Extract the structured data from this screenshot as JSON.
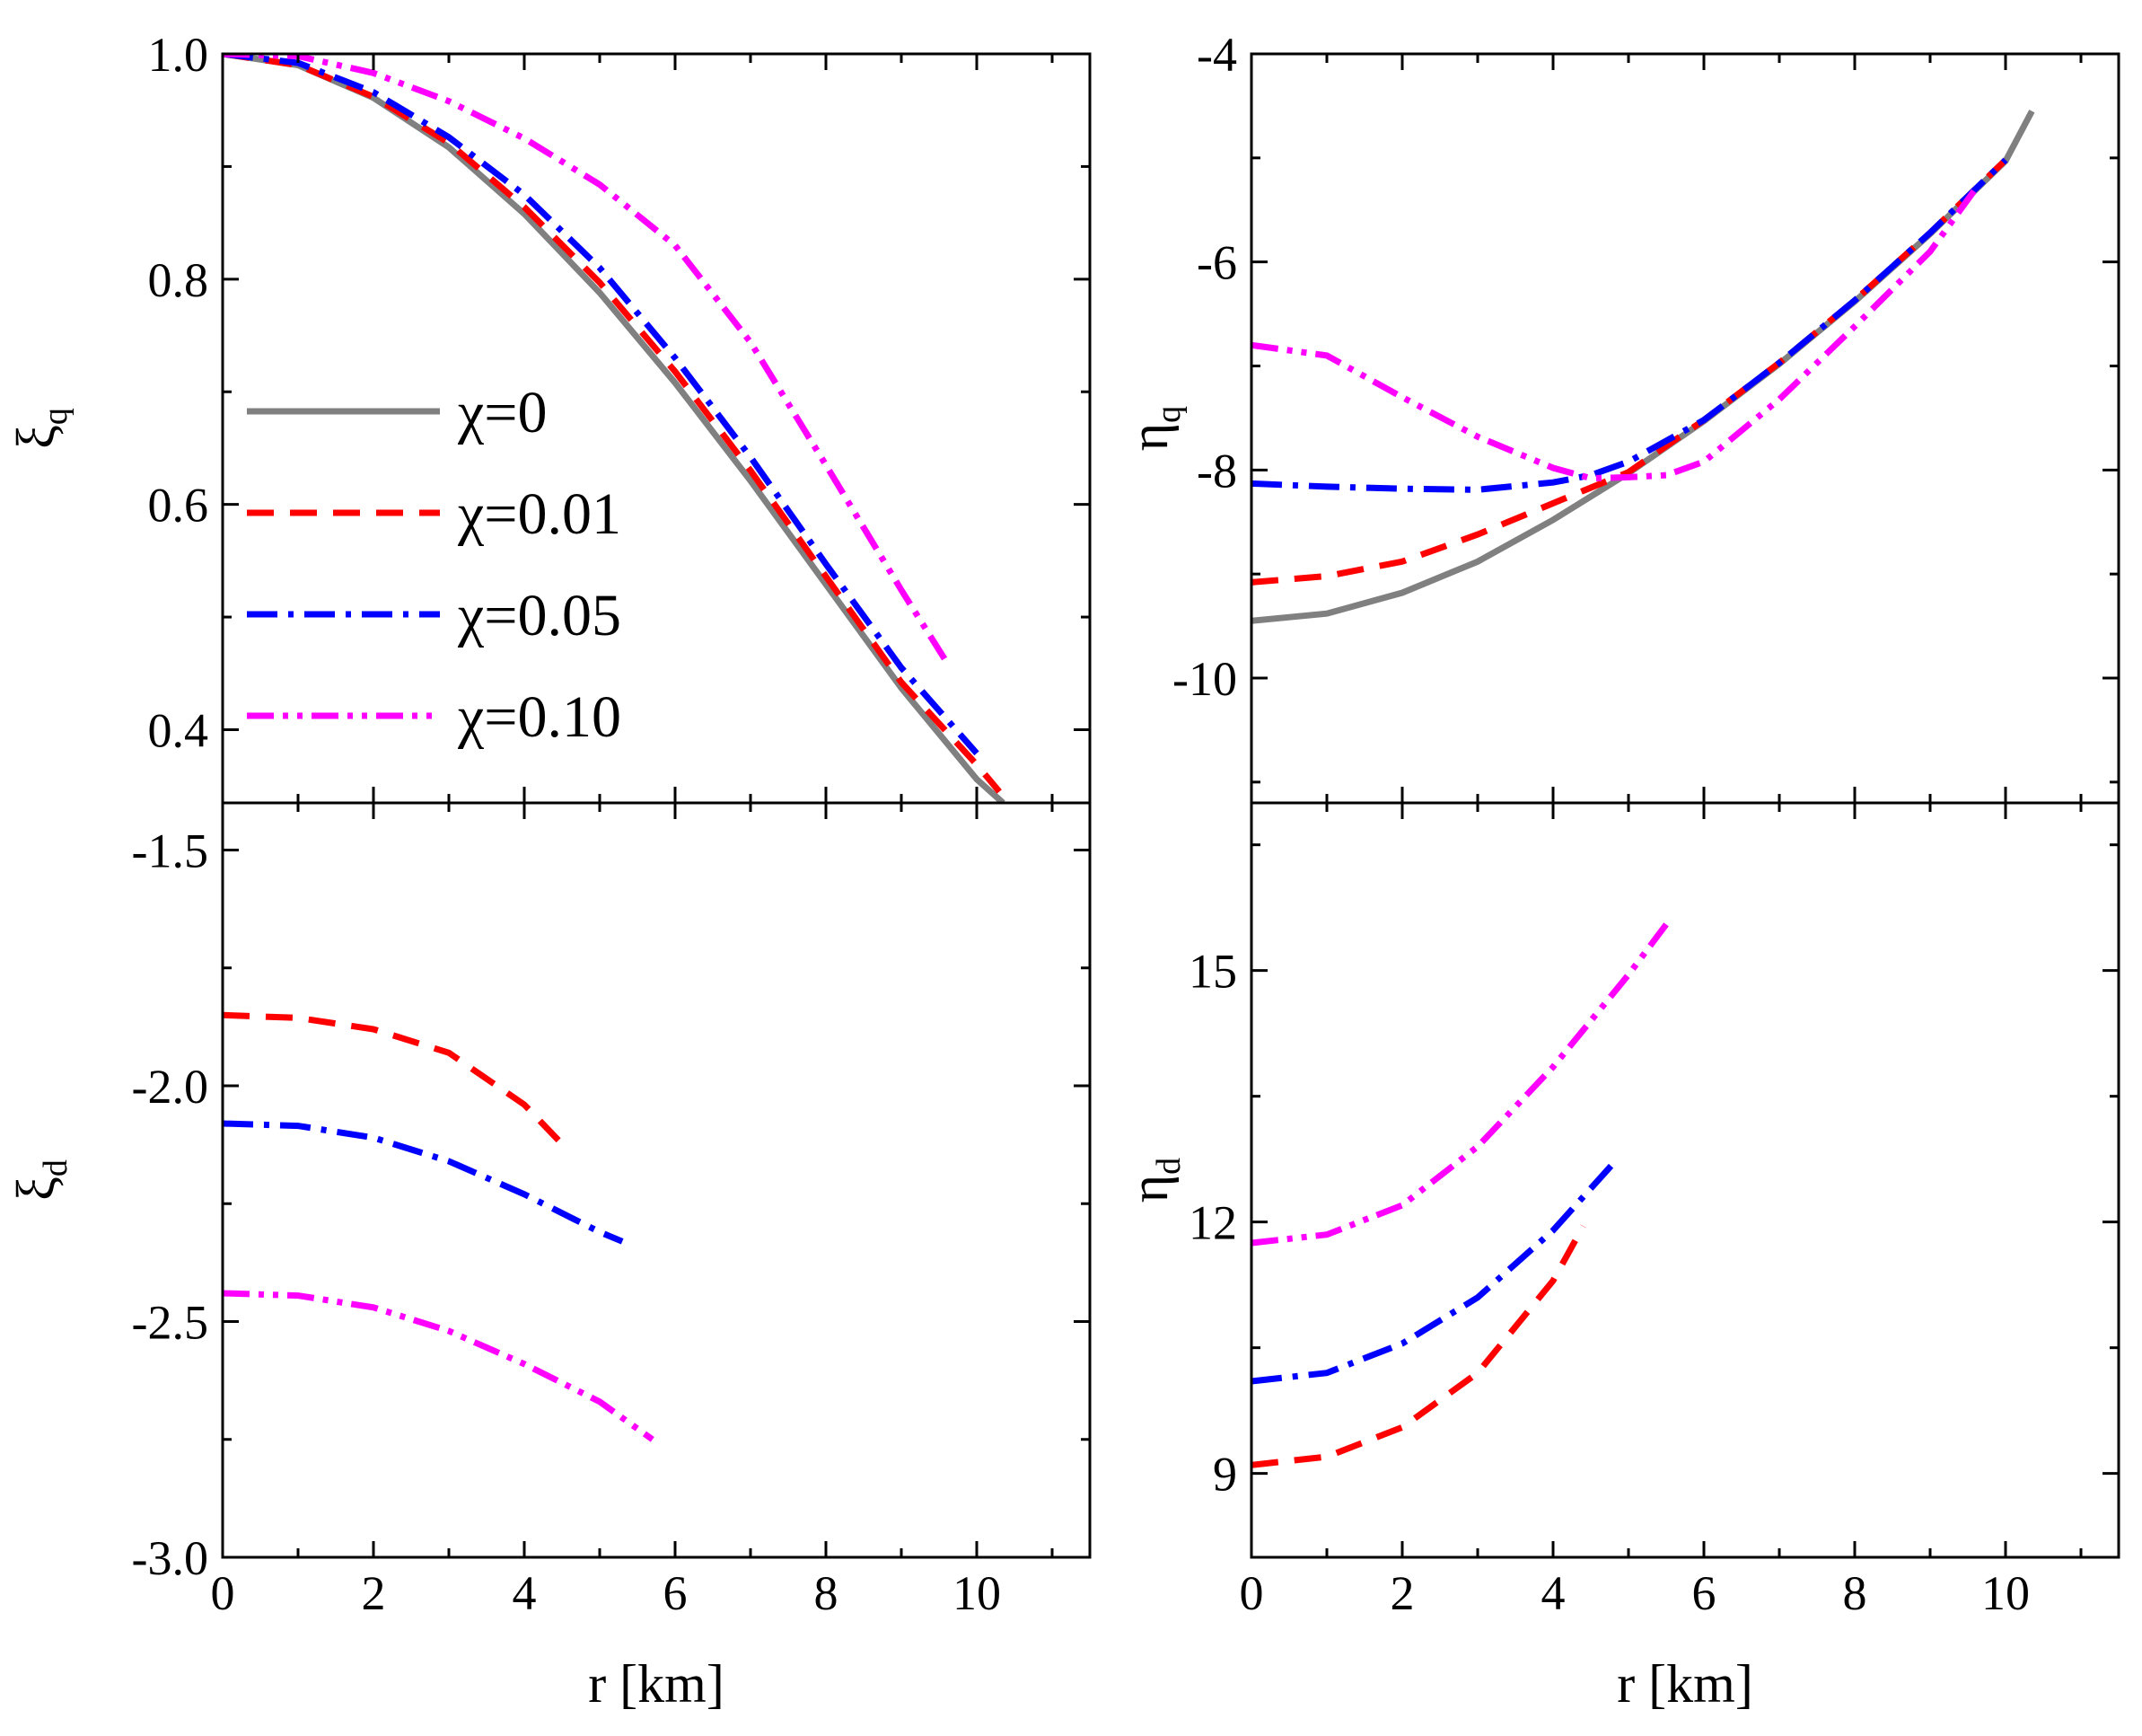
{
  "figure_title": "",
  "legend": [
    {
      "series": "chi0",
      "label": "χ=0"
    },
    {
      "series": "chi001",
      "label": "χ=0.01"
    },
    {
      "series": "chi005",
      "label": "χ=0.05"
    },
    {
      "series": "chi010",
      "label": "χ=0.10"
    }
  ],
  "styles": {
    "chi0": {
      "color": "#808080",
      "dash": ""
    },
    "chi001": {
      "color": "#ff0000",
      "dash": "30,18"
    },
    "chi005": {
      "color": "#0000ff",
      "dash": "34,12,6,12"
    },
    "chi010": {
      "color": "#ff00ff",
      "dash": "30,10,6,10,6,10"
    }
  },
  "chart_data": [
    {
      "id": "xi_q",
      "type": "line",
      "title": "",
      "xlabel": "",
      "ylabel_main": "ξ",
      "ylabel_sub": "q",
      "xlim": [
        0,
        11.5
      ],
      "ylim": [
        0.335,
        1.0
      ],
      "xticks": [
        0,
        2,
        4,
        6,
        8,
        10
      ],
      "xtick_labels": [
        "",
        "",
        "",
        "",
        "",
        ""
      ],
      "yticks": [
        0.4,
        0.6,
        0.8,
        1.0
      ],
      "ytick_labels": [
        "0.4",
        "0.6",
        "0.8",
        "1.0"
      ],
      "legend_position": "center-left",
      "series": [
        {
          "name": "chi0",
          "x": [
            0,
            1,
            2,
            3,
            4,
            5,
            6,
            7,
            8,
            9,
            10,
            10.35
          ],
          "y": [
            1.0,
            0.99,
            0.961,
            0.917,
            0.858,
            0.788,
            0.708,
            0.621,
            0.529,
            0.437,
            0.356,
            0.335
          ]
        },
        {
          "name": "chi001",
          "x": [
            0,
            1,
            2,
            3,
            4,
            5,
            6,
            7,
            8,
            9,
            10,
            10.3
          ],
          "y": [
            1.0,
            0.99,
            0.962,
            0.921,
            0.864,
            0.797,
            0.718,
            0.63,
            0.536,
            0.442,
            0.369,
            0.345
          ]
        },
        {
          "name": "chi005",
          "x": [
            0,
            1,
            2,
            3,
            4,
            5,
            6,
            7,
            8,
            9,
            10
          ],
          "y": [
            1.0,
            0.992,
            0.966,
            0.926,
            0.875,
            0.81,
            0.73,
            0.642,
            0.547,
            0.455,
            0.379
          ]
        },
        {
          "name": "chi010",
          "x": [
            0,
            1,
            2,
            3,
            4,
            5,
            6,
            7,
            8,
            9,
            9.6
          ],
          "y": [
            1.0,
            0.998,
            0.983,
            0.958,
            0.925,
            0.884,
            0.83,
            0.744,
            0.635,
            0.524,
            0.46
          ]
        }
      ]
    },
    {
      "id": "eta_q",
      "type": "line",
      "title": "",
      "xlabel": "",
      "ylabel_main": "η",
      "ylabel_sub": "q",
      "xlim": [
        0,
        11.5
      ],
      "ylim": [
        -11.2,
        -4.0
      ],
      "xticks": [
        0,
        2,
        4,
        6,
        8,
        10
      ],
      "xtick_labels": [
        "",
        "",
        "",
        "",
        "",
        ""
      ],
      "yticks": [
        -10,
        -8,
        -6,
        -4
      ],
      "ytick_labels": [
        "-10",
        "-8",
        "-6",
        "-4"
      ],
      "series": [
        {
          "name": "chi0",
          "x": [
            0,
            1,
            2,
            3,
            4,
            5,
            6,
            7,
            8,
            9,
            10,
            10.35
          ],
          "y": [
            -9.45,
            -9.38,
            -9.18,
            -8.88,
            -8.48,
            -8.03,
            -7.53,
            -6.98,
            -6.38,
            -5.73,
            -5.03,
            -4.55
          ]
        },
        {
          "name": "chi001",
          "x": [
            0,
            1,
            2,
            3,
            4,
            5,
            6,
            7,
            8,
            9,
            10
          ],
          "y": [
            -9.08,
            -9.02,
            -8.88,
            -8.62,
            -8.32,
            -8.02,
            -7.52,
            -6.97,
            -6.37,
            -5.72,
            -5.02
          ]
        },
        {
          "name": "chi005",
          "x": [
            0,
            1,
            2,
            3,
            4,
            4.5,
            5,
            6,
            7,
            8,
            9,
            10
          ],
          "y": [
            -8.13,
            -8.16,
            -8.18,
            -8.19,
            -8.12,
            -8.05,
            -7.92,
            -7.52,
            -6.97,
            -6.37,
            -5.72,
            -5.02
          ]
        },
        {
          "name": "chi010",
          "x": [
            0,
            1,
            2,
            3,
            4,
            4.5,
            5,
            5.5,
            6,
            7,
            8,
            9,
            9.6
          ],
          "y": [
            -6.8,
            -6.9,
            -7.3,
            -7.68,
            -7.98,
            -8.08,
            -8.07,
            -8.05,
            -7.92,
            -7.32,
            -6.62,
            -5.9,
            -5.3
          ]
        }
      ]
    },
    {
      "id": "xi_d",
      "type": "line",
      "title": "",
      "xlabel": "r [km]",
      "ylabel_main": "ξ",
      "ylabel_sub": "d",
      "xlim": [
        0,
        11.5
      ],
      "ylim": [
        -3.0,
        -1.4
      ],
      "xticks": [
        0,
        2,
        4,
        6,
        8,
        10
      ],
      "xtick_labels": [
        "0",
        "2",
        "4",
        "6",
        "8",
        "10"
      ],
      "yticks": [
        -3.0,
        -2.5,
        -2.0,
        -1.5
      ],
      "ytick_labels": [
        "-3.0",
        "-2.5",
        "-2.0",
        "-1.5"
      ],
      "series": [
        {
          "name": "chi001",
          "x": [
            0,
            1,
            2,
            3,
            4,
            4.6
          ],
          "y": [
            -1.85,
            -1.856,
            -1.88,
            -1.93,
            -2.04,
            -2.14
          ]
        },
        {
          "name": "chi005",
          "x": [
            0,
            1,
            2,
            3,
            4,
            5,
            5.3
          ],
          "y": [
            -2.08,
            -2.085,
            -2.11,
            -2.16,
            -2.23,
            -2.31,
            -2.33
          ]
        },
        {
          "name": "chi010",
          "x": [
            0,
            1,
            2,
            3,
            4,
            5,
            5.7
          ],
          "y": [
            -2.44,
            -2.445,
            -2.47,
            -2.52,
            -2.59,
            -2.67,
            -2.75
          ]
        }
      ]
    },
    {
      "id": "eta_d",
      "type": "line",
      "title": "",
      "xlabel": "r [km]",
      "ylabel_main": "η",
      "ylabel_sub": "d",
      "xlim": [
        0,
        11.5
      ],
      "ylim": [
        8.0,
        17.0
      ],
      "xticks": [
        0,
        2,
        4,
        6,
        8,
        10
      ],
      "xtick_labels": [
        "0",
        "2",
        "4",
        "6",
        "8",
        "10"
      ],
      "yticks": [
        9,
        12,
        15
      ],
      "ytick_labels": [
        "9",
        "12",
        "15"
      ],
      "series": [
        {
          "name": "chi001",
          "x": [
            0,
            1,
            2,
            3,
            4,
            4.4
          ],
          "y": [
            9.1,
            9.2,
            9.55,
            10.2,
            11.3,
            11.95
          ]
        },
        {
          "name": "chi005",
          "x": [
            0,
            1,
            2,
            3,
            4,
            4.8
          ],
          "y": [
            10.1,
            10.2,
            10.55,
            11.1,
            11.9,
            12.7
          ]
        },
        {
          "name": "chi010",
          "x": [
            0,
            1,
            2,
            3,
            4,
            5,
            5.5
          ],
          "y": [
            11.75,
            11.85,
            12.2,
            12.9,
            13.85,
            14.95,
            15.55
          ]
        }
      ]
    }
  ]
}
